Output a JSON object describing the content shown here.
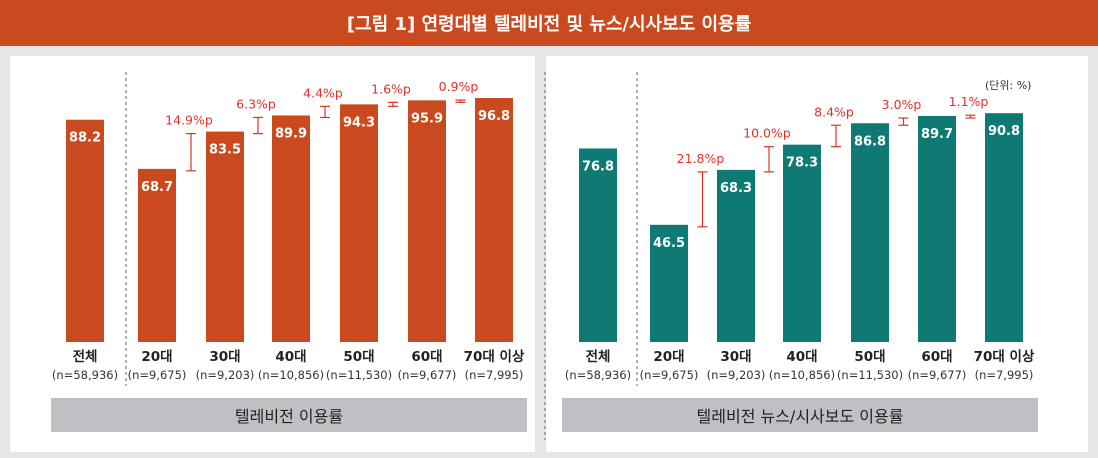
{
  "title": "[그림 1] 연령대별 텔레비전 및 뉴스/시사보도 이용률",
  "unit": "(단위: %)",
  "colors": {
    "accent": "#c94a1f",
    "left_bar": "#c94a1f",
    "right_bar": "#0f7a73",
    "diff": "#d9342b",
    "footer": "#bfc0c4"
  },
  "chart_data": [
    {
      "type": "bar",
      "title": "텔레비전 이용률",
      "categories": [
        "전체",
        "20대",
        "30대",
        "40대",
        "50대",
        "60대",
        "70대 이상"
      ],
      "samples": [
        "(n=58,936)",
        "(n=9,675)",
        "(n=9,203)",
        "(n=10,856)",
        "(n=11,530)",
        "(n=9,677)",
        "(n=7,995)"
      ],
      "values": [
        88.2,
        68.7,
        83.5,
        89.9,
        94.3,
        95.9,
        96.8
      ],
      "value_labels": [
        "88.2",
        "68.7",
        "83.5",
        "89.9",
        "94.3",
        "95.9",
        "96.8"
      ],
      "diffs": [
        "14.9%p",
        "6.3%p",
        "4.4%p",
        "1.6%p",
        "0.9%p"
      ],
      "ylim": [
        0,
        100
      ],
      "xlabel": "",
      "ylabel": ""
    },
    {
      "type": "bar",
      "title": "텔레비전 뉴스/시사보도 이용률",
      "categories": [
        "전체",
        "20대",
        "30대",
        "40대",
        "50대",
        "60대",
        "70대 이상"
      ],
      "samples": [
        "(n=58,936)",
        "(n=9,675)",
        "(n=9,203)",
        "(n=10,856)",
        "(n=11,530)",
        "(n=9,677)",
        "(n=7,995)"
      ],
      "values": [
        76.8,
        46.5,
        68.3,
        78.3,
        86.8,
        89.7,
        90.8
      ],
      "value_labels": [
        "76.8",
        "46.5",
        "68.3",
        "78.3",
        "86.8",
        "89.7",
        "90.8"
      ],
      "diffs": [
        "21.8%p",
        "10.0%p",
        "8.4%p",
        "3.0%p",
        "1.1%p"
      ],
      "ylim": [
        0,
        100
      ],
      "xlabel": "",
      "ylabel": ""
    }
  ]
}
